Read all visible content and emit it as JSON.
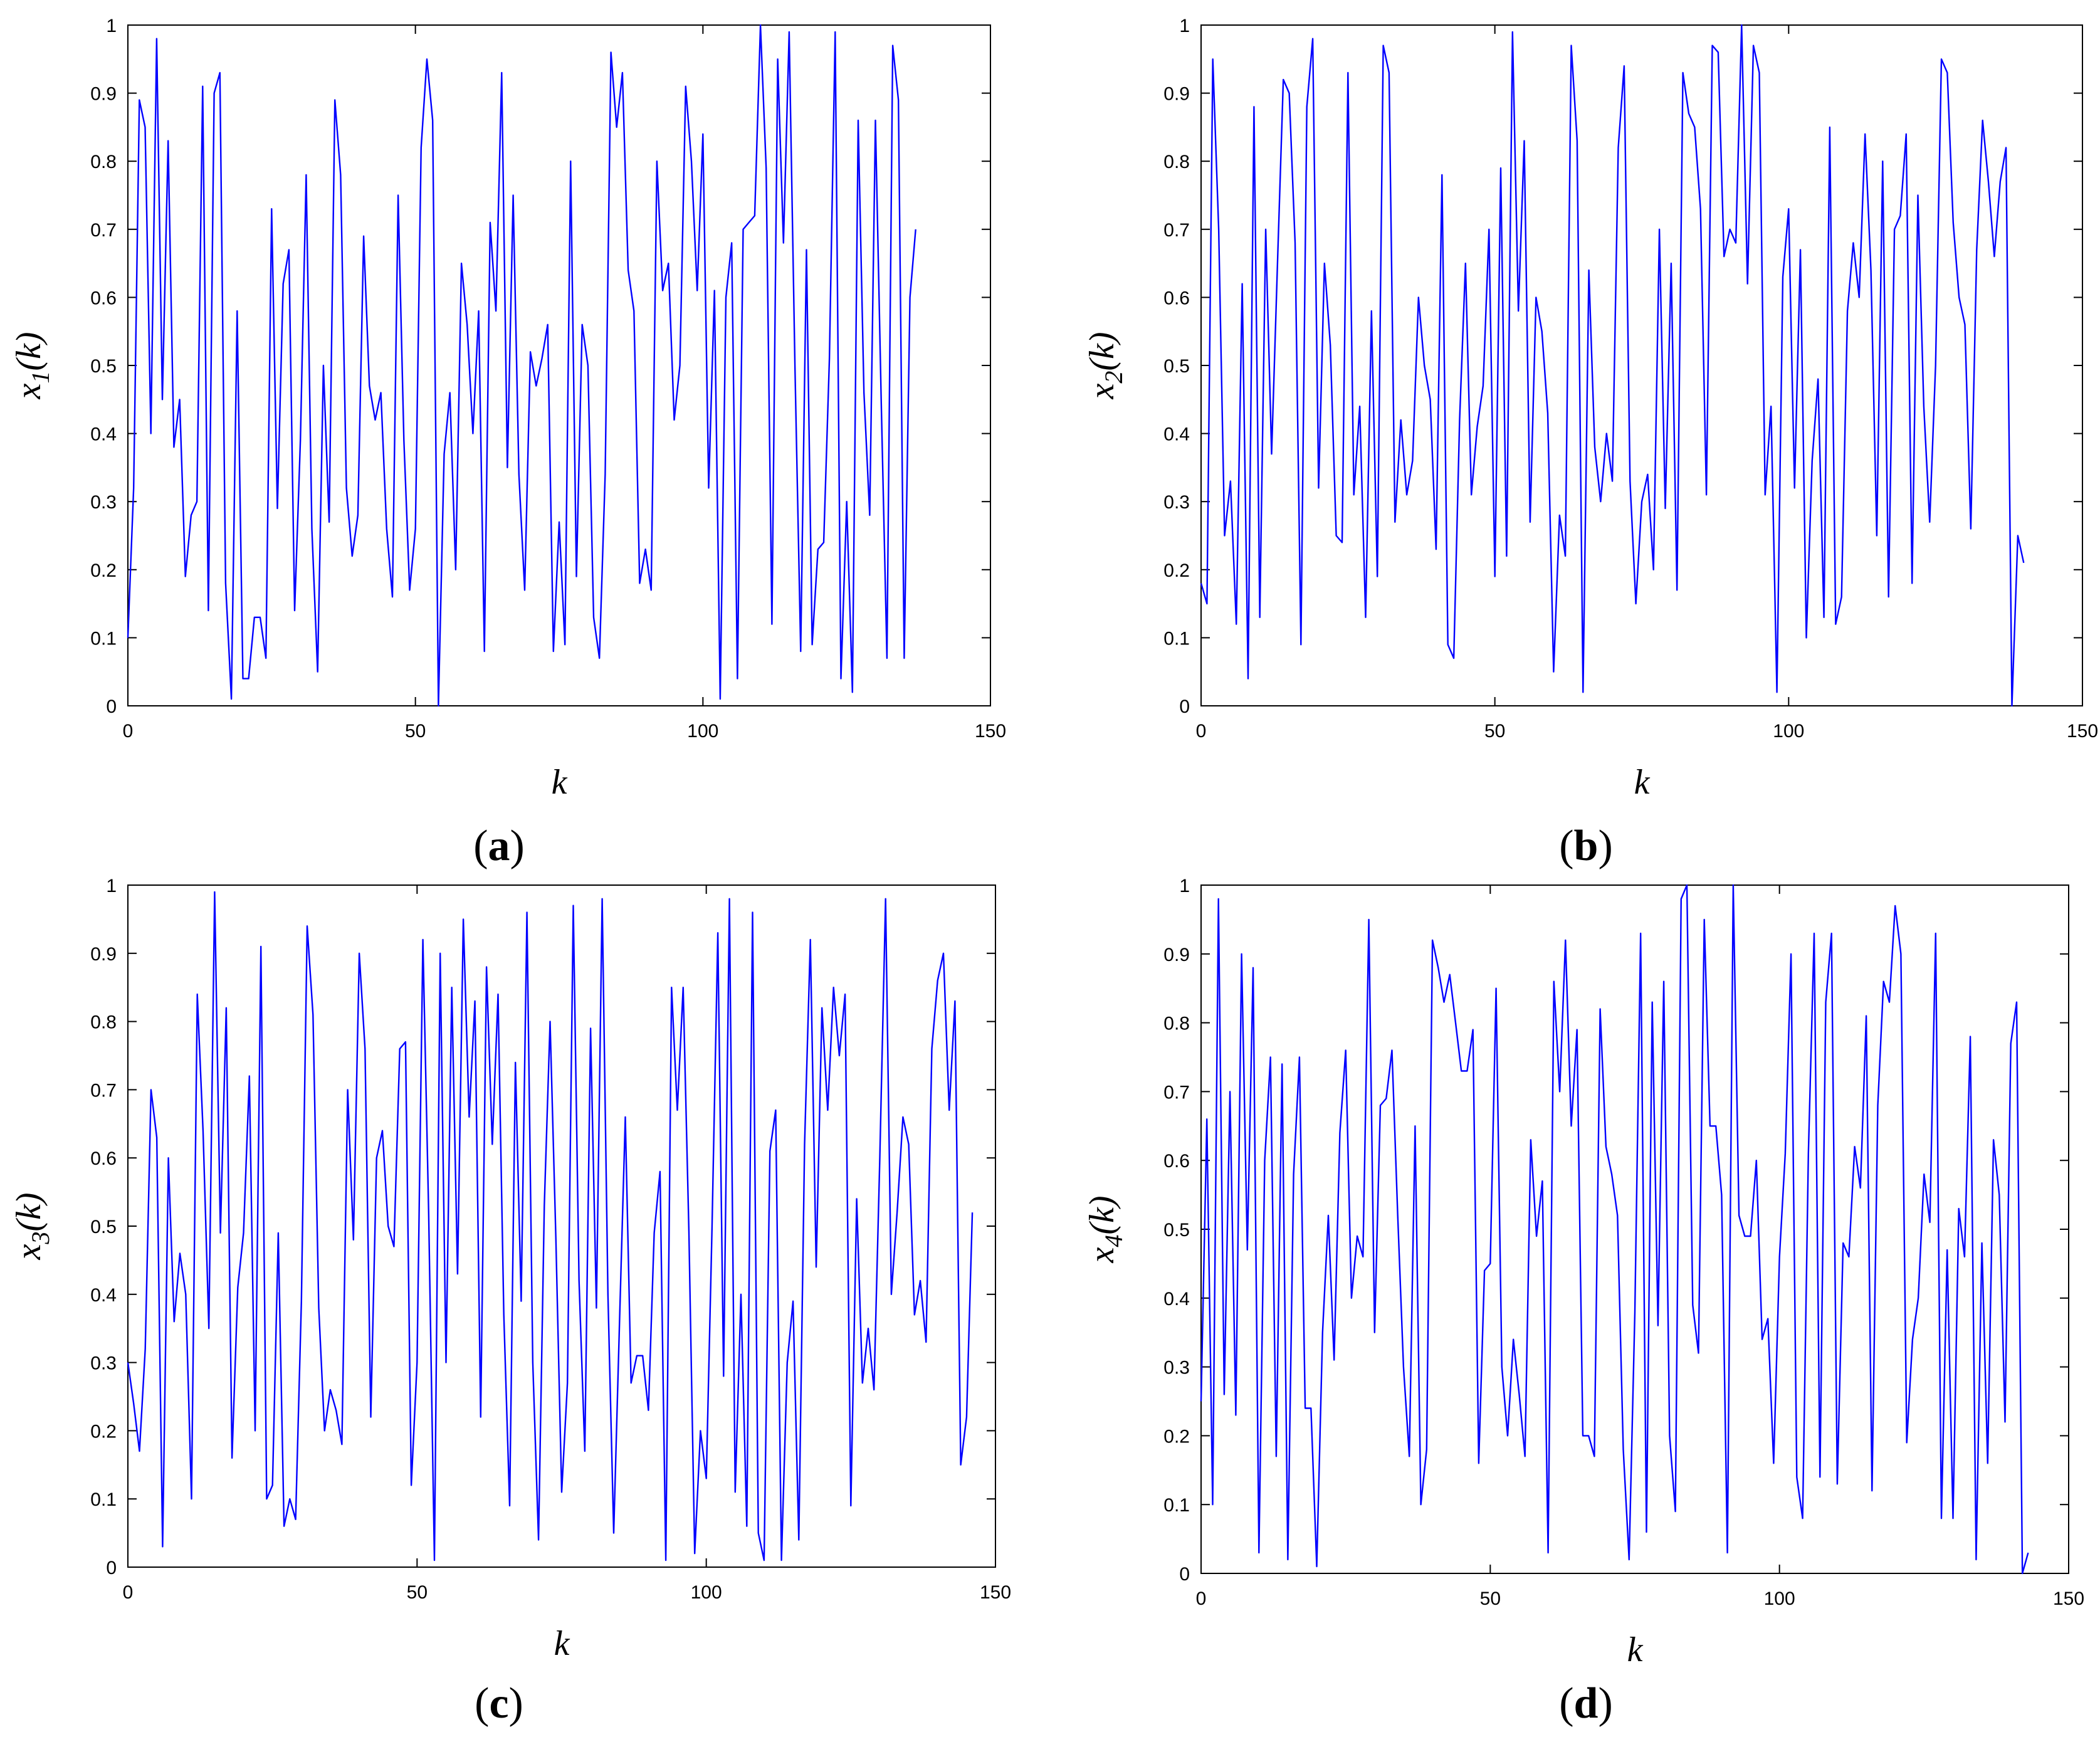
{
  "chart_data": [
    {
      "type": "line",
      "panel_label": "a",
      "xlabel": "k",
      "ylabel": {
        "base": "x",
        "sub": "1",
        "arg": "(k)"
      },
      "xlim": [
        0,
        150
      ],
      "ylim": [
        0,
        1
      ],
      "xticks": [
        "0",
        "50",
        "100",
        "150"
      ],
      "yticks": [
        "0",
        "0.1",
        "0.2",
        "0.3",
        "0.4",
        "0.5",
        "0.6",
        "0.7",
        "0.8",
        "0.9",
        "1"
      ],
      "grid": false,
      "line_color": "#0000ff",
      "series": [
        {
          "y": [
            0.1,
            0.32,
            0.89,
            0.85,
            0.4,
            0.98,
            0.45,
            0.83,
            0.38,
            0.45,
            0.19,
            0.28,
            0.3,
            0.91,
            0.14,
            0.9,
            0.93,
            0.18,
            0.01,
            0.58,
            0.04,
            0.04,
            0.13,
            0.13,
            0.07,
            0.73,
            0.29,
            0.62,
            0.67,
            0.14,
            0.39,
            0.78,
            0.26,
            0.05,
            0.5,
            0.27,
            0.89,
            0.78,
            0.32,
            0.22,
            0.28,
            0.69,
            0.47,
            0.42,
            0.46,
            0.26,
            0.16,
            0.75,
            0.39,
            0.17,
            0.26,
            0.82,
            0.95,
            0.86,
            0.0,
            0.37,
            0.46,
            0.2,
            0.65,
            0.56,
            0.4,
            0.58,
            0.08,
            0.71,
            0.58,
            0.93,
            0.35,
            0.75,
            0.34,
            0.17,
            0.52,
            0.47,
            0.51,
            0.56,
            0.08,
            0.27,
            0.09,
            0.8,
            0.19,
            0.56,
            0.5,
            0.13,
            0.07,
            0.34,
            0.96,
            0.85,
            0.93,
            0.64,
            0.58,
            0.18,
            0.23,
            0.17,
            0.8,
            0.61,
            0.65,
            0.42,
            0.5,
            0.91,
            0.8,
            0.61,
            0.84,
            0.32,
            0.61,
            0.01,
            0.6,
            0.68,
            0.04,
            0.7,
            0.71,
            0.72,
            1.0,
            0.79,
            0.12,
            0.95,
            0.68,
            0.99,
            0.5,
            0.08,
            0.67,
            0.09,
            0.23,
            0.24,
            0.51,
            0.99,
            0.04,
            0.3,
            0.02,
            0.86,
            0.46,
            0.28,
            0.86,
            0.45,
            0.07,
            0.97,
            0.89,
            0.07,
            0.6,
            0.7
          ]
        }
      ]
    },
    {
      "type": "line",
      "panel_label": "b",
      "xlabel": "k",
      "ylabel": {
        "base": "x",
        "sub": "2",
        "arg": "(k)"
      },
      "xlim": [
        0,
        150
      ],
      "ylim": [
        0,
        1
      ],
      "xticks": [
        "0",
        "50",
        "100",
        "150"
      ],
      "yticks": [
        "0",
        "0.1",
        "0.2",
        "0.3",
        "0.4",
        "0.5",
        "0.6",
        "0.7",
        "0.8",
        "0.9",
        "1"
      ],
      "grid": false,
      "line_color": "#0000ff",
      "series": [
        {
          "y": [
            0.18,
            0.15,
            0.95,
            0.7,
            0.25,
            0.33,
            0.12,
            0.62,
            0.04,
            0.88,
            0.13,
            0.7,
            0.37,
            0.65,
            0.92,
            0.9,
            0.68,
            0.09,
            0.88,
            0.98,
            0.32,
            0.65,
            0.53,
            0.25,
            0.24,
            0.93,
            0.31,
            0.44,
            0.13,
            0.58,
            0.19,
            0.97,
            0.93,
            0.27,
            0.42,
            0.31,
            0.36,
            0.6,
            0.5,
            0.45,
            0.23,
            0.78,
            0.09,
            0.07,
            0.42,
            0.65,
            0.31,
            0.41,
            0.47,
            0.7,
            0.19,
            0.79,
            0.22,
            0.99,
            0.58,
            0.83,
            0.27,
            0.6,
            0.55,
            0.43,
            0.05,
            0.28,
            0.22,
            0.97,
            0.83,
            0.02,
            0.64,
            0.38,
            0.3,
            0.4,
            0.33,
            0.82,
            0.94,
            0.33,
            0.15,
            0.3,
            0.34,
            0.2,
            0.7,
            0.29,
            0.65,
            0.17,
            0.93,
            0.87,
            0.85,
            0.73,
            0.31,
            0.97,
            0.96,
            0.66,
            0.7,
            0.68,
            1.0,
            0.62,
            0.97,
            0.93,
            0.31,
            0.44,
            0.02,
            0.63,
            0.73,
            0.32,
            0.67,
            0.1,
            0.36,
            0.48,
            0.13,
            0.85,
            0.12,
            0.16,
            0.58,
            0.68,
            0.6,
            0.84,
            0.64,
            0.25,
            0.8,
            0.16,
            0.7,
            0.72,
            0.84,
            0.18,
            0.75,
            0.44,
            0.27,
            0.5,
            0.95,
            0.93,
            0.71,
            0.6,
            0.56,
            0.26,
            0.67,
            0.86,
            0.77,
            0.66,
            0.77,
            0.82,
            0.0,
            0.25,
            0.21
          ]
        }
      ]
    },
    {
      "type": "line",
      "panel_label": "c",
      "xlabel": "k",
      "ylabel": {
        "base": "x",
        "sub": "3",
        "arg": "(k)"
      },
      "xlim": [
        0,
        150
      ],
      "ylim": [
        0,
        1
      ],
      "xticks": [
        "0",
        "50",
        "100",
        "150"
      ],
      "yticks": [
        "0",
        "0.1",
        "0.2",
        "0.3",
        "0.4",
        "0.5",
        "0.6",
        "0.7",
        "0.8",
        "0.9",
        "1"
      ],
      "grid": false,
      "line_color": "#0000ff",
      "series": [
        {
          "y": [
            0.3,
            0.24,
            0.17,
            0.32,
            0.7,
            0.63,
            0.03,
            0.6,
            0.36,
            0.46,
            0.4,
            0.1,
            0.84,
            0.64,
            0.35,
            0.99,
            0.49,
            0.82,
            0.16,
            0.41,
            0.49,
            0.72,
            0.2,
            0.91,
            0.1,
            0.12,
            0.49,
            0.06,
            0.1,
            0.07,
            0.39,
            0.94,
            0.81,
            0.38,
            0.2,
            0.26,
            0.23,
            0.18,
            0.7,
            0.48,
            0.9,
            0.76,
            0.22,
            0.6,
            0.64,
            0.5,
            0.47,
            0.76,
            0.77,
            0.12,
            0.3,
            0.92,
            0.52,
            0.01,
            0.9,
            0.3,
            0.85,
            0.43,
            0.95,
            0.66,
            0.83,
            0.22,
            0.88,
            0.62,
            0.84,
            0.37,
            0.09,
            0.74,
            0.39,
            0.96,
            0.3,
            0.04,
            0.53,
            0.8,
            0.48,
            0.11,
            0.27,
            0.97,
            0.42,
            0.17,
            0.79,
            0.38,
            0.98,
            0.4,
            0.05,
            0.36,
            0.66,
            0.27,
            0.31,
            0.31,
            0.23,
            0.49,
            0.58,
            0.01,
            0.85,
            0.67,
            0.85,
            0.49,
            0.02,
            0.2,
            0.13,
            0.5,
            0.93,
            0.28,
            0.98,
            0.11,
            0.4,
            0.06,
            0.96,
            0.05,
            0.01,
            0.61,
            0.67,
            0.01,
            0.3,
            0.39,
            0.04,
            0.62,
            0.92,
            0.44,
            0.82,
            0.67,
            0.85,
            0.75,
            0.84,
            0.09,
            0.54,
            0.27,
            0.35,
            0.26,
            0.6,
            0.98,
            0.4,
            0.52,
            0.66,
            0.62,
            0.37,
            0.42,
            0.33,
            0.76,
            0.86,
            0.9,
            0.67,
            0.83,
            0.15,
            0.22,
            0.52
          ]
        }
      ]
    },
    {
      "type": "line",
      "panel_label": "d",
      "xlabel": "k",
      "ylabel": {
        "base": "x",
        "sub": "4",
        "arg": "(k)"
      },
      "xlim": [
        0,
        150
      ],
      "ylim": [
        0,
        1
      ],
      "xticks": [
        "0",
        "50",
        "100",
        "150"
      ],
      "yticks": [
        "0",
        "0.1",
        "0.2",
        "0.3",
        "0.4",
        "0.5",
        "0.6",
        "0.7",
        "0.8",
        "0.9",
        "1"
      ],
      "grid": false,
      "line_color": "#0000ff",
      "series": [
        {
          "y": [
            0.25,
            0.66,
            0.1,
            0.98,
            0.26,
            0.7,
            0.23,
            0.9,
            0.47,
            0.88,
            0.03,
            0.6,
            0.75,
            0.17,
            0.74,
            0.02,
            0.58,
            0.75,
            0.24,
            0.24,
            0.01,
            0.35,
            0.52,
            0.31,
            0.64,
            0.76,
            0.4,
            0.49,
            0.46,
            0.95,
            0.35,
            0.68,
            0.69,
            0.76,
            0.52,
            0.3,
            0.17,
            0.65,
            0.1,
            0.18,
            0.92,
            0.88,
            0.83,
            0.87,
            0.8,
            0.73,
            0.73,
            0.79,
            0.16,
            0.44,
            0.45,
            0.85,
            0.3,
            0.2,
            0.34,
            0.26,
            0.17,
            0.63,
            0.49,
            0.57,
            0.03,
            0.86,
            0.7,
            0.92,
            0.65,
            0.79,
            0.2,
            0.2,
            0.17,
            0.82,
            0.62,
            0.58,
            0.52,
            0.18,
            0.02,
            0.38,
            0.93,
            0.06,
            0.83,
            0.36,
            0.86,
            0.2,
            0.09,
            0.98,
            1.0,
            0.39,
            0.32,
            0.95,
            0.65,
            0.65,
            0.55,
            0.03,
            1.0,
            0.52,
            0.49,
            0.49,
            0.6,
            0.34,
            0.37,
            0.16,
            0.46,
            0.61,
            0.9,
            0.14,
            0.08,
            0.61,
            0.93,
            0.14,
            0.83,
            0.93,
            0.13,
            0.48,
            0.46,
            0.62,
            0.56,
            0.81,
            0.12,
            0.68,
            0.86,
            0.83,
            0.97,
            0.9,
            0.19,
            0.34,
            0.4,
            0.58,
            0.51,
            0.93,
            0.08,
            0.47,
            0.08,
            0.53,
            0.46,
            0.78,
            0.02,
            0.48,
            0.16,
            0.63,
            0.55,
            0.22,
            0.77,
            0.83,
            0.0,
            0.03
          ]
        }
      ]
    }
  ]
}
